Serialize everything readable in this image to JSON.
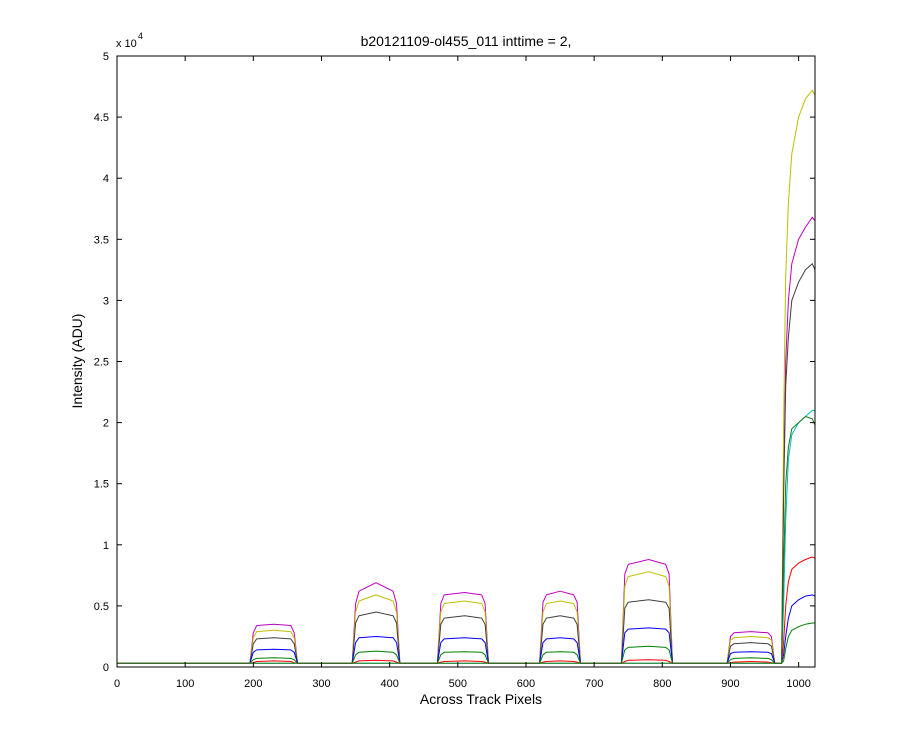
{
  "chart_data": {
    "type": "line",
    "title": "b20121109-ol455_011 inttime = 2,",
    "xlabel": "Across Track Pixels",
    "ylabel": "Intensity (ADU)",
    "y_exponent_label": "x 10",
    "y_exponent_power": "4",
    "xlim": [
      0,
      1024
    ],
    "ylim": [
      0,
      50000
    ],
    "grid": false,
    "x_ticks": [
      0,
      100,
      200,
      300,
      400,
      500,
      600,
      700,
      800,
      900,
      1000
    ],
    "x_tick_labels": [
      "0",
      "100",
      "200",
      "300",
      "400",
      "500",
      "600",
      "700",
      "800",
      "900",
      "1000"
    ],
    "y_ticks": [
      0,
      5000,
      10000,
      15000,
      20000,
      25000,
      30000,
      35000,
      40000,
      45000,
      50000
    ],
    "y_tick_labels": [
      "0",
      "0.5",
      "1",
      "1.5",
      "2",
      "2.5",
      "3",
      "3.5",
      "4",
      "4.5",
      "5"
    ],
    "x": [
      0,
      195,
      200,
      205,
      230,
      255,
      260,
      265,
      345,
      350,
      355,
      380,
      405,
      410,
      415,
      470,
      475,
      480,
      510,
      535,
      540,
      545,
      620,
      625,
      630,
      650,
      670,
      675,
      680,
      740,
      745,
      750,
      780,
      805,
      810,
      815,
      895,
      900,
      905,
      930,
      955,
      960,
      965,
      970,
      975,
      978,
      981,
      985,
      990,
      1000,
      1010,
      1020,
      1024
    ],
    "series": [
      {
        "color": "#bf00bf",
        "values": [
          300,
          300,
          2800,
          3400,
          3500,
          3400,
          2800,
          300,
          300,
          5200,
          6200,
          6900,
          6200,
          5200,
          300,
          300,
          5200,
          5900,
          6100,
          5900,
          5200,
          300,
          300,
          5300,
          5900,
          6200,
          5900,
          5300,
          300,
          300,
          7600,
          8400,
          8800,
          8400,
          7600,
          300,
          300,
          2500,
          2800,
          2900,
          2800,
          2500,
          300,
          300,
          300,
          15000,
          25000,
          30000,
          33000,
          35000,
          36000,
          36800,
          36500
        ]
      },
      {
        "color": "#bfbf00",
        "values": [
          300,
          300,
          2400,
          2900,
          3000,
          2900,
          2400,
          300,
          300,
          4500,
          5400,
          5900,
          5400,
          4500,
          300,
          300,
          4500,
          5200,
          5400,
          5200,
          4500,
          300,
          300,
          4500,
          5200,
          5400,
          5200,
          4500,
          300,
          300,
          6600,
          7400,
          7800,
          7400,
          6600,
          300,
          300,
          2200,
          2400,
          2500,
          2400,
          2200,
          300,
          300,
          300,
          20000,
          32000,
          38000,
          42000,
          45000,
          46500,
          47200,
          46800
        ]
      },
      {
        "color": "#404040",
        "values": [
          300,
          300,
          1900,
          2300,
          2400,
          2300,
          1900,
          300,
          300,
          3600,
          4200,
          4500,
          4200,
          3600,
          300,
          300,
          3500,
          4000,
          4200,
          4000,
          3500,
          300,
          300,
          3500,
          4000,
          4200,
          4000,
          3500,
          300,
          300,
          4800,
          5300,
          5500,
          5300,
          4800,
          300,
          300,
          1700,
          1900,
          2000,
          1900,
          1700,
          300,
          300,
          300,
          14000,
          23000,
          27000,
          30000,
          31500,
          32500,
          33000,
          32500
        ]
      },
      {
        "color": "#0000ff",
        "values": [
          300,
          300,
          1200,
          1400,
          1450,
          1400,
          1200,
          300,
          300,
          2000,
          2400,
          2500,
          2400,
          2000,
          300,
          300,
          2000,
          2300,
          2400,
          2300,
          2000,
          300,
          300,
          2000,
          2300,
          2400,
          2300,
          2000,
          300,
          300,
          2800,
          3100,
          3200,
          3100,
          2800,
          300,
          300,
          1100,
          1200,
          1250,
          1200,
          1100,
          300,
          300,
          300,
          1000,
          2500,
          4000,
          5000,
          5500,
          5800,
          5900,
          5800
        ]
      },
      {
        "color": "#008000",
        "values": [
          300,
          300,
          600,
          700,
          750,
          700,
          600,
          300,
          300,
          1000,
          1200,
          1300,
          1200,
          1000,
          300,
          300,
          1000,
          1200,
          1250,
          1200,
          1000,
          300,
          300,
          1000,
          1200,
          1250,
          1200,
          1000,
          300,
          300,
          1400,
          1600,
          1700,
          1600,
          1400,
          300,
          300,
          600,
          700,
          750,
          700,
          600,
          300,
          300,
          300,
          500,
          1500,
          2500,
          3000,
          3300,
          3500,
          3600,
          3600
        ]
      },
      {
        "color": "#00bfbf",
        "values": [
          300,
          300,
          300,
          300,
          300,
          300,
          300,
          300,
          300,
          300,
          300,
          300,
          300,
          300,
          300,
          300,
          300,
          300,
          300,
          300,
          300,
          300,
          300,
          300,
          300,
          300,
          300,
          300,
          300,
          300,
          300,
          300,
          300,
          300,
          300,
          300,
          300,
          300,
          300,
          300,
          300,
          300,
          300,
          300,
          300,
          5000,
          12000,
          17000,
          19000,
          20000,
          20500,
          21000,
          21000
        ]
      },
      {
        "color": "#ff0000",
        "values": [
          300,
          300,
          350,
          450,
          500,
          450,
          350,
          300,
          300,
          400,
          500,
          550,
          500,
          400,
          300,
          300,
          400,
          450,
          500,
          450,
          400,
          300,
          300,
          400,
          450,
          500,
          450,
          400,
          300,
          300,
          450,
          550,
          600,
          550,
          450,
          300,
          300,
          350,
          400,
          450,
          400,
          350,
          300,
          300,
          300,
          2000,
          5000,
          7000,
          8000,
          8500,
          8800,
          9000,
          8900
        ]
      },
      {
        "color": "#1a7a1a",
        "values": [
          300,
          300,
          300,
          300,
          300,
          300,
          300,
          300,
          300,
          300,
          300,
          300,
          300,
          300,
          300,
          300,
          300,
          300,
          300,
          300,
          300,
          300,
          300,
          300,
          300,
          300,
          300,
          300,
          300,
          300,
          300,
          300,
          300,
          300,
          300,
          300,
          300,
          300,
          300,
          300,
          300,
          300,
          300,
          300,
          300,
          8000,
          15000,
          18000,
          19500,
          20000,
          20500,
          20300,
          19800
        ]
      }
    ]
  }
}
